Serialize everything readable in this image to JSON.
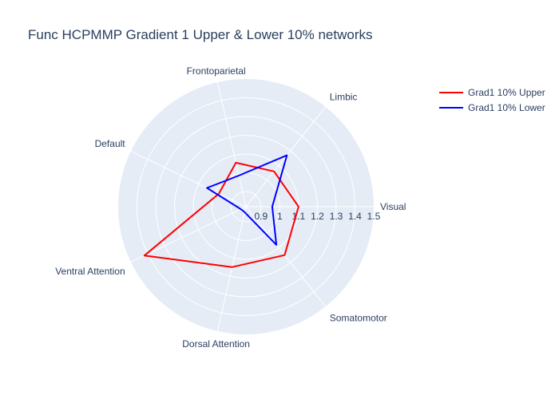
{
  "chart_data": {
    "type": "radar",
    "title": "Func HCPMMP Gradient 1 Upper & Lower 10% networks",
    "categories": [
      "Visual",
      "Somatomotor",
      "Dorsal Attention",
      "Ventral Attention",
      "Default",
      "Frontoparietal",
      "Limbic"
    ],
    "radial_ticks": [
      "0.9",
      "1",
      "1.1",
      "1.2",
      "1.3",
      "1.4",
      "1.5"
    ],
    "rlim": [
      0.82,
      1.5
    ],
    "grid": true,
    "legend_position": "top-right",
    "series": [
      {
        "name": "Grad1 10% Upper",
        "color": "#ff0000",
        "values": [
          1.1,
          1.15,
          1.15,
          1.42,
          0.98,
          1.06,
          1.06
        ]
      },
      {
        "name": "Grad1 10% Lower",
        "color": "#0000ff",
        "values": [
          0.96,
          1.08,
          0.85,
          0.85,
          1.05,
          0.99,
          1.17
        ]
      }
    ]
  }
}
